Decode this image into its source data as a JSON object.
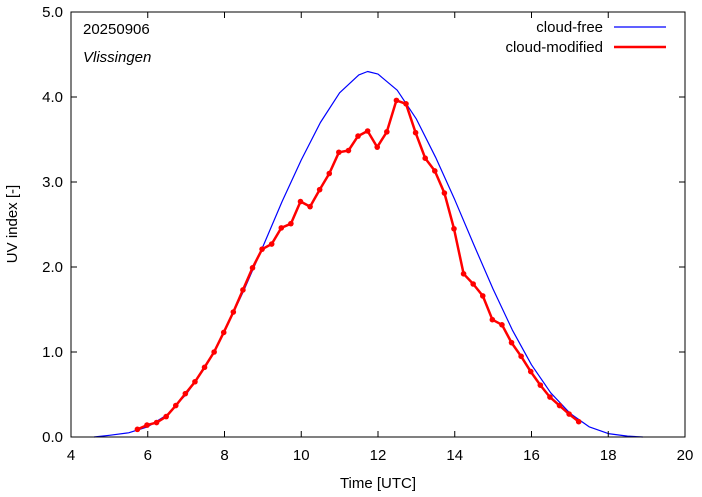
{
  "chart_data": {
    "type": "line",
    "date_label": "20250906",
    "location_label": "Vlissingen",
    "xlabel": "Time  [UTC]",
    "ylabel": "UV index  [-]",
    "xlim": [
      4,
      20
    ],
    "ylim": [
      0,
      5
    ],
    "xticks": [
      4,
      6,
      8,
      10,
      12,
      14,
      16,
      18,
      20
    ],
    "xtick_labels": [
      "4",
      "6",
      "8",
      "10",
      "12",
      "14",
      "16",
      "18",
      "20"
    ],
    "yticks": [
      0,
      1,
      2,
      3,
      4,
      5
    ],
    "ytick_labels": [
      "0.0",
      "1.0",
      "2.0",
      "3.0",
      "4.0",
      "5.0"
    ],
    "grid": false,
    "legend_position": "top-right",
    "series": [
      {
        "name": "cloud-free",
        "color": "#0000ff",
        "markers": false,
        "x": [
          4.6,
          5.0,
          5.5,
          6.0,
          6.5,
          7.0,
          7.5,
          8.0,
          8.5,
          9.0,
          9.5,
          10.0,
          10.5,
          11.0,
          11.5,
          11.73,
          12.0,
          12.5,
          13.0,
          13.5,
          14.0,
          14.5,
          15.0,
          15.5,
          16.0,
          16.5,
          17.0,
          17.5,
          18.0,
          18.5,
          18.9
        ],
        "y": [
          0.0,
          0.02,
          0.05,
          0.12,
          0.26,
          0.5,
          0.82,
          1.24,
          1.72,
          2.24,
          2.77,
          3.26,
          3.7,
          4.05,
          4.26,
          4.3,
          4.27,
          4.08,
          3.74,
          3.29,
          2.79,
          2.26,
          1.74,
          1.26,
          0.85,
          0.52,
          0.28,
          0.12,
          0.04,
          0.01,
          0.0
        ]
      },
      {
        "name": "cloud-modified",
        "color": "#ff0000",
        "markers": true,
        "x": [
          5.73,
          5.98,
          6.23,
          6.48,
          6.73,
          6.98,
          7.23,
          7.48,
          7.73,
          7.98,
          8.23,
          8.48,
          8.73,
          8.98,
          9.23,
          9.48,
          9.73,
          9.98,
          10.23,
          10.48,
          10.73,
          10.98,
          11.23,
          11.48,
          11.73,
          11.98,
          12.23,
          12.48,
          12.73,
          12.98,
          13.23,
          13.48,
          13.73,
          13.98,
          14.23,
          14.48,
          14.73,
          14.98,
          15.23,
          15.48,
          15.73,
          15.98,
          16.23,
          16.48,
          16.73,
          16.98,
          17.23
        ],
        "y": [
          0.09,
          0.14,
          0.17,
          0.24,
          0.37,
          0.51,
          0.65,
          0.82,
          1.0,
          1.23,
          1.47,
          1.73,
          1.99,
          2.21,
          2.27,
          2.46,
          2.51,
          2.77,
          2.71,
          2.91,
          3.1,
          3.35,
          3.37,
          3.54,
          3.6,
          3.41,
          3.59,
          3.96,
          3.92,
          3.58,
          3.28,
          3.13,
          2.87,
          2.45,
          1.92,
          1.8,
          1.66,
          1.38,
          1.32,
          1.11,
          0.95,
          0.77,
          0.61,
          0.47,
          0.37,
          0.27,
          0.18
        ]
      }
    ]
  }
}
